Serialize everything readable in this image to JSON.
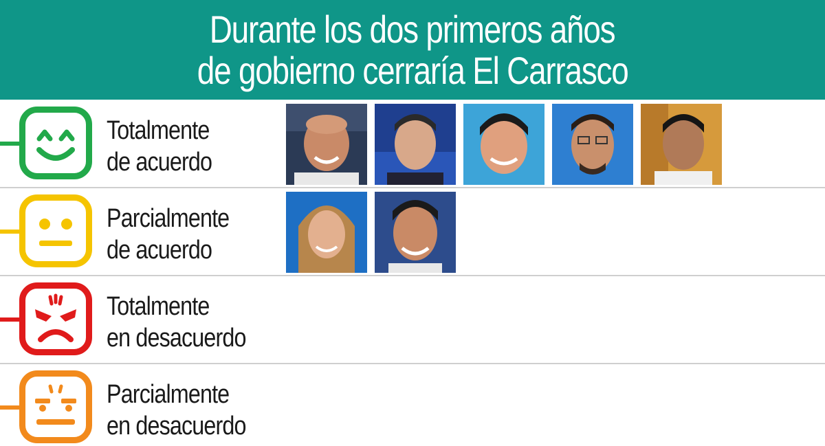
{
  "header": {
    "title_line1": "Durante los dos primeros años",
    "title_line2": "de gobierno cerraría El Carrasco",
    "background": "#0f9688"
  },
  "categories": [
    {
      "label_line1": "Totalmente",
      "label_line2": "de acuerdo",
      "icon": "happy-face-icon",
      "color": "#22a94a",
      "photo_count": 5
    },
    {
      "label_line1": "Parcialmente",
      "label_line2": "de acuerdo",
      "icon": "neutral-face-icon",
      "color": "#f5c400",
      "photo_count": 2
    },
    {
      "label_line1": "Totalmente",
      "label_line2": "en desacuerdo",
      "icon": "angry-face-icon",
      "color": "#e01b1b",
      "photo_count": 0
    },
    {
      "label_line1": "Parcialmente",
      "label_line2": "en desacuerdo",
      "icon": "annoyed-face-icon",
      "color": "#f28a1c",
      "photo_count": 0
    }
  ]
}
